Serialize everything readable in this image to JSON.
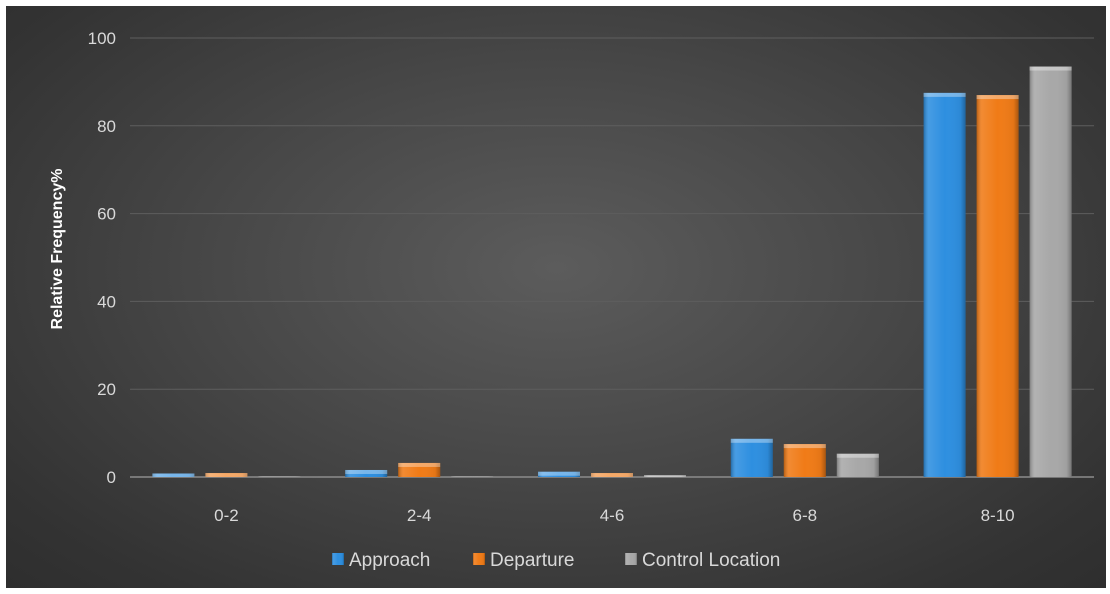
{
  "chart_data": {
    "type": "bar",
    "categories": [
      "0-2",
      "2-4",
      "4-6",
      "6-8",
      "8-10"
    ],
    "series": [
      {
        "name": "Approach",
        "values": [
          0.8,
          1.6,
          1.2,
          8.7,
          87.5
        ],
        "color": "#2e8fe0"
      },
      {
        "name": "Departure",
        "values": [
          0.9,
          3.2,
          0.9,
          7.5,
          87.0
        ],
        "color": "#f07b17"
      },
      {
        "name": "Control Location",
        "values": [
          0.1,
          0.1,
          0.4,
          5.3,
          93.5
        ],
        "color": "#a8a8a8"
      }
    ],
    "title": "",
    "xlabel": "",
    "ylabel": "Relative Frequency%",
    "ylim": [
      0,
      100
    ],
    "yticks": [
      0,
      20,
      40,
      60,
      80,
      100
    ],
    "grid": true,
    "legend_position": "bottom"
  }
}
